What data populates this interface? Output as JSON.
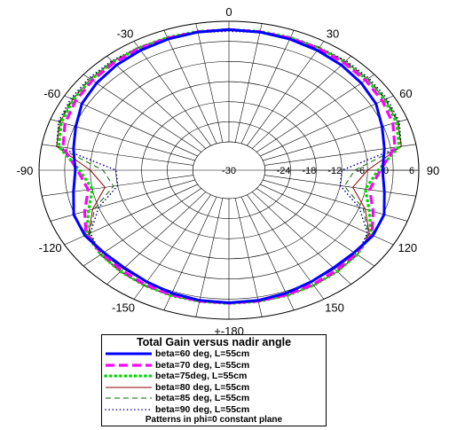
{
  "chart_data": {
    "type": "polar-line",
    "title": "Total Gain versus nadir angle",
    "subtitle": "Patterns in phi=0 constant plane",
    "angular_axis": {
      "unit": "deg",
      "ticks": [
        0,
        30,
        60,
        90,
        120,
        150,
        180,
        -150,
        -120,
        -90,
        -60,
        -30
      ],
      "tick_labels": [
        "0",
        "30",
        "60",
        "90",
        "120",
        "150",
        "+-180",
        "-150",
        "-120",
        "-90",
        "-60",
        "-30"
      ],
      "minor_grid_step": 10
    },
    "radial_axis": {
      "range": [
        -30,
        6
      ],
      "ticks": [
        -30,
        -24,
        -18,
        -12,
        -6,
        0,
        6
      ],
      "tick_labels": [
        "-30",
        "-24",
        "-18",
        "-12",
        "-6",
        "0",
        "6"
      ]
    },
    "grid": true,
    "legend_position": "bottom",
    "angles": [
      0,
      10,
      20,
      30,
      40,
      50,
      60,
      70,
      80,
      90,
      100,
      110,
      120,
      130,
      140,
      150,
      160,
      170,
      180
    ],
    "series": [
      {
        "name": "beta=60 deg, L=55cm",
        "color": "#0000ff",
        "style": "solid-thick",
        "values": [
          3.5,
          3.4,
          3.2,
          2.9,
          2.5,
          2.0,
          1.3,
          -0.3,
          -1.5,
          -2.5,
          -1.5,
          0.2,
          0.5,
          -0.2,
          -0.4,
          0.0,
          0.6,
          1.0,
          1.1
        ]
      },
      {
        "name": "beta=70 deg, L=55cm",
        "color": "#ff00ff",
        "style": "dashed-thick",
        "values": [
          3.5,
          3.5,
          3.5,
          3.5,
          3.4,
          3.3,
          3.0,
          2.4,
          1.0,
          -3.0,
          -5.0,
          -2.5,
          0.2,
          0.3,
          0.6,
          0.9,
          1.1,
          1.2,
          1.2
        ]
      },
      {
        "name": "beta=75deg, L=55cm",
        "color": "#00dd00",
        "style": "dotted-thick",
        "values": [
          3.5,
          3.6,
          3.7,
          3.7,
          3.7,
          3.7,
          3.6,
          3.3,
          2.0,
          -3.5,
          -6.0,
          -3.5,
          0.0,
          0.7,
          1.0,
          1.2,
          1.3,
          1.3,
          1.3
        ]
      },
      {
        "name": "beta=80 deg, L=55cm",
        "color": "#8b0000",
        "style": "solid-thin",
        "values": [
          3.3,
          3.5,
          3.7,
          3.8,
          3.9,
          3.9,
          3.8,
          3.6,
          2.5,
          -6.0,
          -9.0,
          -4.5,
          -0.5,
          0.8,
          1.1,
          1.3,
          1.4,
          1.4,
          1.4
        ]
      },
      {
        "name": "beta=85 deg, L=55cm",
        "color": "#006400",
        "style": "dashed-thin",
        "values": [
          3.2,
          3.4,
          3.7,
          3.9,
          4.0,
          4.0,
          4.0,
          3.8,
          2.5,
          -9.0,
          -11.0,
          -5.0,
          -0.8,
          0.8,
          1.1,
          1.3,
          1.4,
          1.4,
          1.4
        ]
      },
      {
        "name": "beta=90 deg, L=55cm",
        "color": "#00008b",
        "style": "dotted-thin",
        "values": [
          3.0,
          3.3,
          3.7,
          3.9,
          4.2,
          4.3,
          4.3,
          4.0,
          2.5,
          -12.0,
          -12.0,
          -6.0,
          -1.0,
          0.7,
          1.0,
          1.2,
          1.3,
          1.3,
          1.3
        ]
      }
    ]
  }
}
